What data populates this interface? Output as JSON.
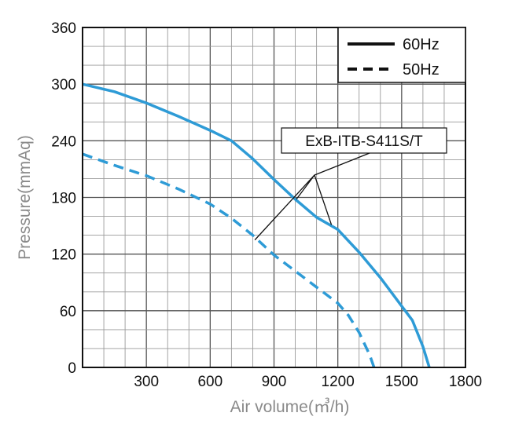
{
  "chart_data": {
    "type": "line",
    "xlabel": "Air volume(㎥/h)",
    "ylabel": "Pressure(mmAq)",
    "xlim": [
      0,
      1800
    ],
    "ylim": [
      0,
      360
    ],
    "x_ticks": [
      "300",
      "600",
      "900",
      "1200",
      "1500",
      "1800"
    ],
    "y_ticks": [
      "0",
      "60",
      "120",
      "180",
      "240",
      "300",
      "360"
    ],
    "grid": true,
    "legend_position": "top-right",
    "series": [
      {
        "name": "60Hz",
        "style": "solid",
        "color": "#2e9bd6",
        "points": [
          [
            0,
            300
          ],
          [
            150,
            292
          ],
          [
            300,
            280
          ],
          [
            450,
            266
          ],
          [
            600,
            251
          ],
          [
            700,
            240
          ],
          [
            800,
            221
          ],
          [
            900,
            199
          ],
          [
            1000,
            178
          ],
          [
            1100,
            159
          ],
          [
            1200,
            146
          ],
          [
            1300,
            122
          ],
          [
            1400,
            95
          ],
          [
            1500,
            65
          ],
          [
            1550,
            50
          ],
          [
            1600,
            22
          ],
          [
            1630,
            0
          ]
        ]
      },
      {
        "name": "50Hz",
        "style": "dashed",
        "color": "#2e9bd6",
        "points": [
          [
            0,
            226
          ],
          [
            150,
            214
          ],
          [
            300,
            203
          ],
          [
            450,
            189
          ],
          [
            600,
            173
          ],
          [
            700,
            158
          ],
          [
            800,
            140
          ],
          [
            900,
            119
          ],
          [
            1000,
            102
          ],
          [
            1100,
            85
          ],
          [
            1200,
            68
          ],
          [
            1250,
            55
          ],
          [
            1300,
            37
          ],
          [
            1350,
            13
          ],
          [
            1370,
            0
          ]
        ]
      }
    ],
    "annotation": {
      "label": "ExB-ITB-S411S/T"
    }
  }
}
